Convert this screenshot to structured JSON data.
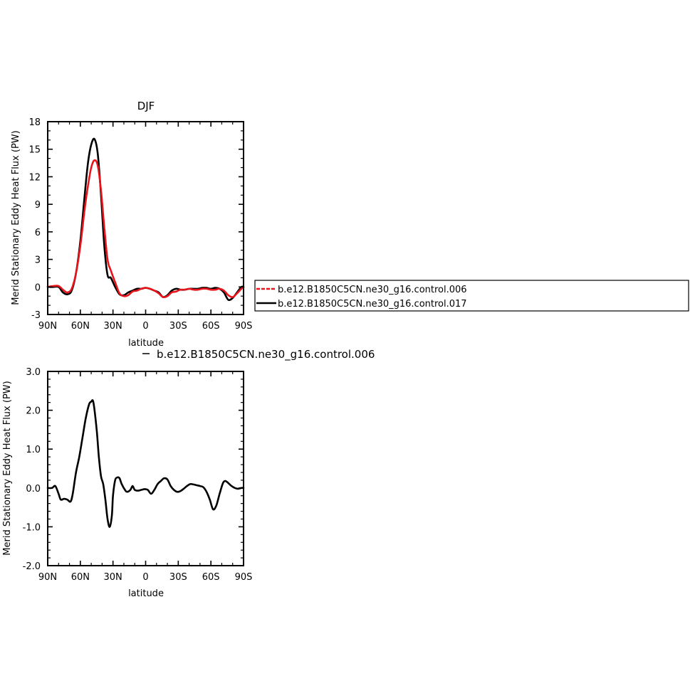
{
  "chart_data": [
    {
      "type": "line",
      "title": "DJF",
      "xlabel": "latitude",
      "ylabel": "Merid Stationary Eddy Heat Flux (PW)",
      "xlim": [
        90,
        -90
      ],
      "ylim": [
        -3,
        18
      ],
      "xticks": [
        90,
        60,
        30,
        0,
        -30,
        -60,
        -90
      ],
      "xtick_labels": [
        "90N",
        "60N",
        "30N",
        "0",
        "30S",
        "60S",
        "90S"
      ],
      "yticks": [
        -3,
        0,
        3,
        6,
        9,
        12,
        15,
        18
      ],
      "ytick_labels": [
        "-3",
        "0",
        "3",
        "6",
        "9",
        "12",
        "15",
        "18"
      ],
      "grid": false,
      "legend": {
        "placement": "right",
        "entries": [
          "b.e12.B1850C5CN.ne30_g16.control.006",
          "b.e12.B1850C5CN.ne30_g16.control.017"
        ]
      },
      "series": [
        {
          "name": "b.e12.B1850C5CN.ne30_g16.control.006",
          "color": "#e8141a",
          "dashed": true,
          "x": [
            90,
            85,
            80,
            76,
            72,
            68,
            64,
            60,
            56,
            53,
            50,
            47,
            44,
            41,
            38,
            35,
            32,
            28,
            24,
            20,
            16,
            12,
            8,
            4,
            0,
            -4,
            -8,
            -12,
            -16,
            -20,
            -24,
            -28,
            -32,
            -36,
            -40,
            -44,
            -48,
            -52,
            -56,
            -60,
            -64,
            -68,
            -72,
            -76,
            -80,
            -84,
            -88,
            -90
          ],
          "y": [
            0,
            0.1,
            0.1,
            -0.3,
            -0.6,
            -0.2,
            1.5,
            4.5,
            8.5,
            11,
            13,
            13.8,
            13.2,
            10.5,
            6.5,
            3,
            1.8,
            0.5,
            -0.7,
            -1,
            -0.9,
            -0.5,
            -0.4,
            -0.2,
            -0.1,
            -0.2,
            -0.4,
            -0.7,
            -1.1,
            -1,
            -0.6,
            -0.5,
            -0.3,
            -0.3,
            -0.2,
            -0.3,
            -0.3,
            -0.2,
            -0.2,
            -0.3,
            -0.3,
            -0.2,
            -0.4,
            -0.9,
            -1.1,
            -0.7,
            -0.2,
            0
          ]
        },
        {
          "name": "b.e12.B1850C5CN.ne30_g16.control.017",
          "color": "#000000",
          "dashed": false,
          "x": [
            90,
            85,
            80,
            76,
            72,
            68,
            64,
            60,
            56,
            53,
            50,
            47,
            44,
            41,
            38,
            35,
            32,
            28,
            24,
            20,
            16,
            12,
            8,
            4,
            0,
            -4,
            -8,
            -12,
            -16,
            -20,
            -24,
            -28,
            -32,
            -36,
            -40,
            -44,
            -48,
            -52,
            -56,
            -60,
            -64,
            -68,
            -72,
            -76,
            -80,
            -84,
            -88,
            -90
          ],
          "y": [
            0,
            0,
            0,
            -0.6,
            -0.8,
            -0.4,
            1.5,
            5,
            10,
            13.5,
            15.5,
            16.1,
            14.5,
            10,
            4.5,
            1.3,
            1,
            0,
            -0.8,
            -0.9,
            -0.6,
            -0.4,
            -0.2,
            -0.2,
            -0.1,
            -0.2,
            -0.4,
            -0.6,
            -1.1,
            -0.9,
            -0.4,
            -0.2,
            -0.3,
            -0.3,
            -0.2,
            -0.2,
            -0.2,
            -0.1,
            -0.1,
            -0.2,
            -0.1,
            -0.2,
            -0.6,
            -1.4,
            -1.2,
            -0.6,
            0,
            0
          ]
        }
      ]
    },
    {
      "type": "line",
      "title": "b.e12.B1850C5CN.ne30_g16.control.006",
      "xlabel": "latitude",
      "ylabel": "Merid Stationary Eddy Heat Flux (PW)",
      "xlim": [
        90,
        -90
      ],
      "ylim": [
        -2,
        3
      ],
      "xticks": [
        90,
        60,
        30,
        0,
        -30,
        -60,
        -90
      ],
      "xtick_labels": [
        "90N",
        "60N",
        "30N",
        "0",
        "30S",
        "60S",
        "90S"
      ],
      "yticks": [
        -2,
        -1,
        0,
        1,
        2,
        3
      ],
      "ytick_labels": [
        "-2.0",
        "-1.0",
        "0.0",
        "1.0",
        "2.0",
        "3.0"
      ],
      "grid": false,
      "series": [
        {
          "color": "#000000",
          "dashed": false,
          "x": [
            90,
            86,
            83,
            80,
            78,
            75,
            72,
            69,
            67,
            64,
            61,
            58,
            55,
            52,
            50,
            48,
            45,
            43,
            41,
            39,
            37,
            35,
            33,
            31,
            30,
            28,
            26,
            24,
            22,
            19,
            17,
            14,
            12,
            10,
            7,
            4,
            1,
            -2,
            -5,
            -8,
            -11,
            -14,
            -17,
            -20,
            -23,
            -26,
            -29,
            -32,
            -35,
            -38,
            -41,
            -44,
            -47,
            -50,
            -53,
            -56,
            -59,
            -62,
            -65,
            -68,
            -71,
            -73,
            -75,
            -77,
            -79,
            -82,
            -85,
            -88,
            -90
          ],
          "y": [
            0,
            0,
            0.05,
            -0.15,
            -0.3,
            -0.28,
            -0.3,
            -0.35,
            -0.15,
            0.4,
            0.8,
            1.3,
            1.8,
            2.15,
            2.22,
            2.2,
            1.5,
            0.8,
            0.3,
            0.1,
            -0.3,
            -0.8,
            -1.0,
            -0.7,
            -0.2,
            0.2,
            0.27,
            0.25,
            0.1,
            -0.05,
            -0.1,
            -0.05,
            0.05,
            -0.05,
            -0.07,
            -0.05,
            -0.03,
            -0.05,
            -0.15,
            -0.05,
            0.1,
            0.18,
            0.25,
            0.22,
            0.05,
            -0.05,
            -0.1,
            -0.08,
            -0.02,
            0.05,
            0.1,
            0.09,
            0.07,
            0.05,
            0.02,
            -0.1,
            -0.3,
            -0.55,
            -0.45,
            -0.15,
            0.12,
            0.18,
            0.15,
            0.1,
            0.05,
            0,
            -0.02,
            0,
            0
          ]
        }
      ]
    }
  ]
}
